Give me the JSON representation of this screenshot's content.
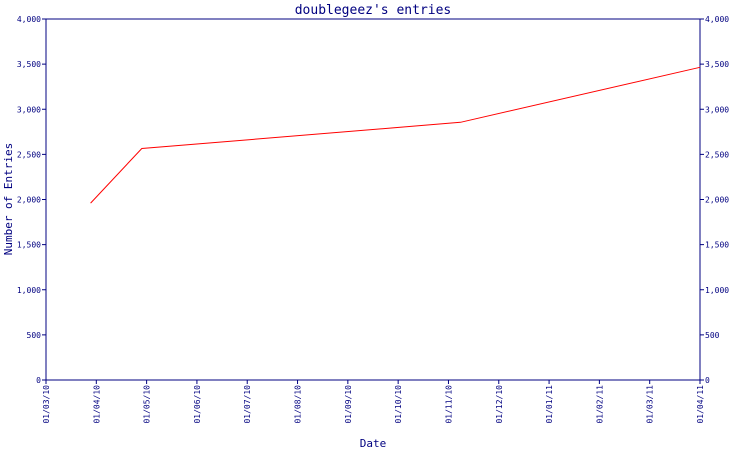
{
  "chart_data": {
    "type": "line",
    "title": "doublegeez's entries",
    "xlabel": "Date",
    "ylabel": "Number of Entries",
    "x_ticks": [
      "01/03/10",
      "01/04/10",
      "01/05/10",
      "01/06/10",
      "01/07/10",
      "01/08/10",
      "01/09/10",
      "01/10/10",
      "01/11/10",
      "01/12/10",
      "01/01/11",
      "01/02/11",
      "01/03/11",
      "01/04/11"
    ],
    "y_ticks": [
      "0",
      "500",
      "1,000",
      "1,500",
      "2,000",
      "2,500",
      "3,000",
      "3,500",
      "4,000"
    ],
    "ylim": [
      0,
      4000
    ],
    "xlim": [
      "2010-03-01",
      "2011-04-01"
    ],
    "grid": false,
    "right_axis_mirrors_left": true,
    "series": [
      {
        "color": "#ff0000",
        "points": [
          {
            "x": "2010-03-28",
            "y": 1960
          },
          {
            "x": "2010-04-28",
            "y": 2565
          },
          {
            "x": "2010-11-07",
            "y": 2855
          },
          {
            "x": "2011-04-01",
            "y": 3465
          }
        ]
      }
    ],
    "axis_color": "#000080"
  }
}
